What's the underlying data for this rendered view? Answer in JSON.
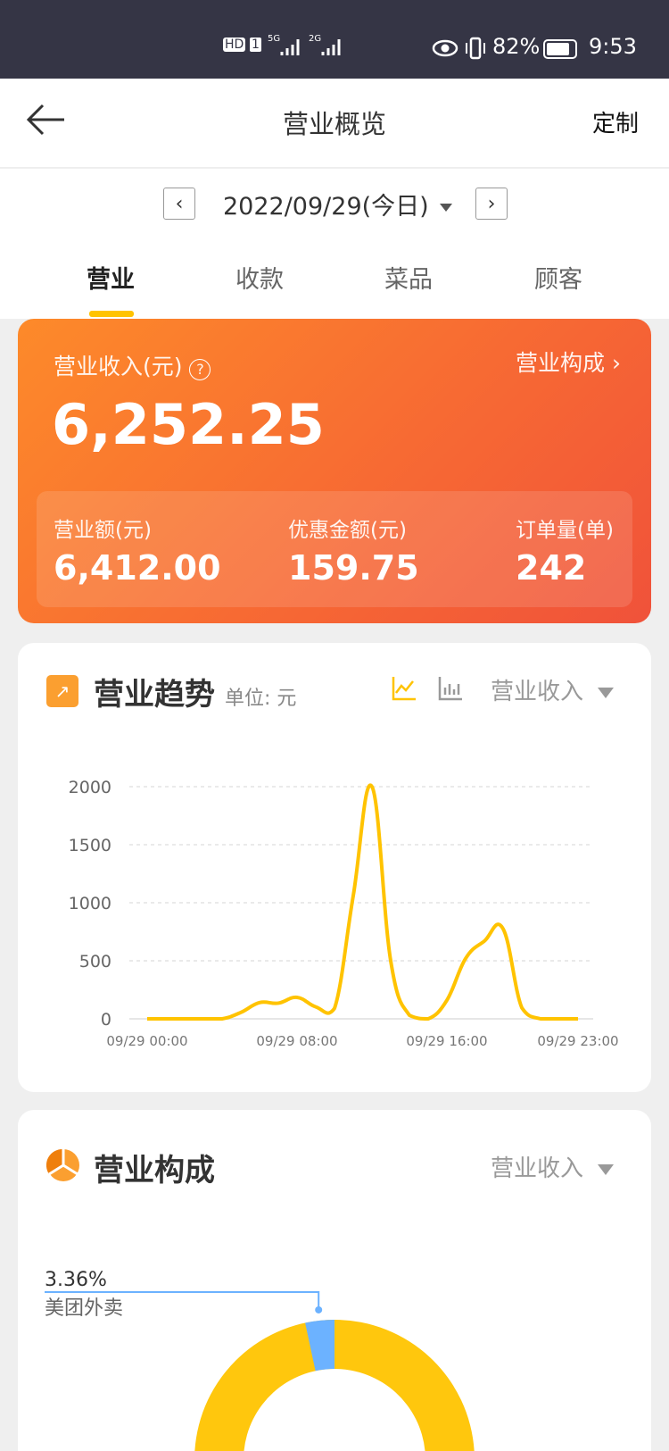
{
  "status_bar": {
    "hd": "HD",
    "sim": "1",
    "net1": "5G",
    "net2": "2G",
    "battery": "82%",
    "battery_level": 0.82,
    "time": "9:53"
  },
  "header": {
    "title": "营业概览",
    "customize": "定制"
  },
  "date_picker": {
    "date": "2022/09/29(今日)"
  },
  "tabs": [
    {
      "label": "营业",
      "active": true
    },
    {
      "label": "收款"
    },
    {
      "label": "菜品"
    },
    {
      "label": "顾客"
    }
  ],
  "summary": {
    "income_label": "营业收入(元)",
    "income_value": "6,252.25",
    "composition_link": "营业构成",
    "stats": [
      {
        "label": "营业额(元)",
        "value": "6,412.00"
      },
      {
        "label": "优惠金额(元)",
        "value": "159.75"
      },
      {
        "label": "订单量(单)",
        "value": "242"
      }
    ]
  },
  "trend": {
    "title": "营业趋势",
    "unit": "单位: 元",
    "metric": "营业收入",
    "accent": "#ffc300"
  },
  "composition": {
    "title": "营业构成",
    "metric": "营业收入"
  },
  "chart_data": [
    {
      "type": "line",
      "smooth": true,
      "color": "#ffc300",
      "x": [
        "00:00",
        "01:00",
        "02:00",
        "03:00",
        "04:00",
        "05:00",
        "06:00",
        "07:00",
        "08:00",
        "09:00",
        "10:00",
        "11:00",
        "12:00",
        "13:00",
        "14:00",
        "15:00",
        "16:00",
        "17:00",
        "18:00",
        "19:00",
        "20:00",
        "21:00",
        "22:00",
        "23:00"
      ],
      "values": [
        0,
        0,
        0,
        0,
        0,
        55,
        140,
        135,
        185,
        103,
        90,
        1060,
        2000,
        500,
        30,
        0,
        160,
        520,
        670,
        775,
        95,
        0,
        0,
        0
      ],
      "xticks": [
        "09/29 00:00",
        "09/29 08:00",
        "09/29 16:00",
        "09/29 23:00"
      ],
      "yticks": [
        "0",
        "500",
        "1000",
        "1500",
        "2000"
      ],
      "ylim": [
        0,
        2000
      ],
      "grid": true
    },
    {
      "type": "pie",
      "donut": true,
      "slices": [
        {
          "name": "美团外卖",
          "percent": 3.36,
          "label": "3.36%",
          "color": "#6cb2ff"
        },
        {
          "percent": 96.64,
          "color": "#ffc70d"
        }
      ]
    }
  ]
}
